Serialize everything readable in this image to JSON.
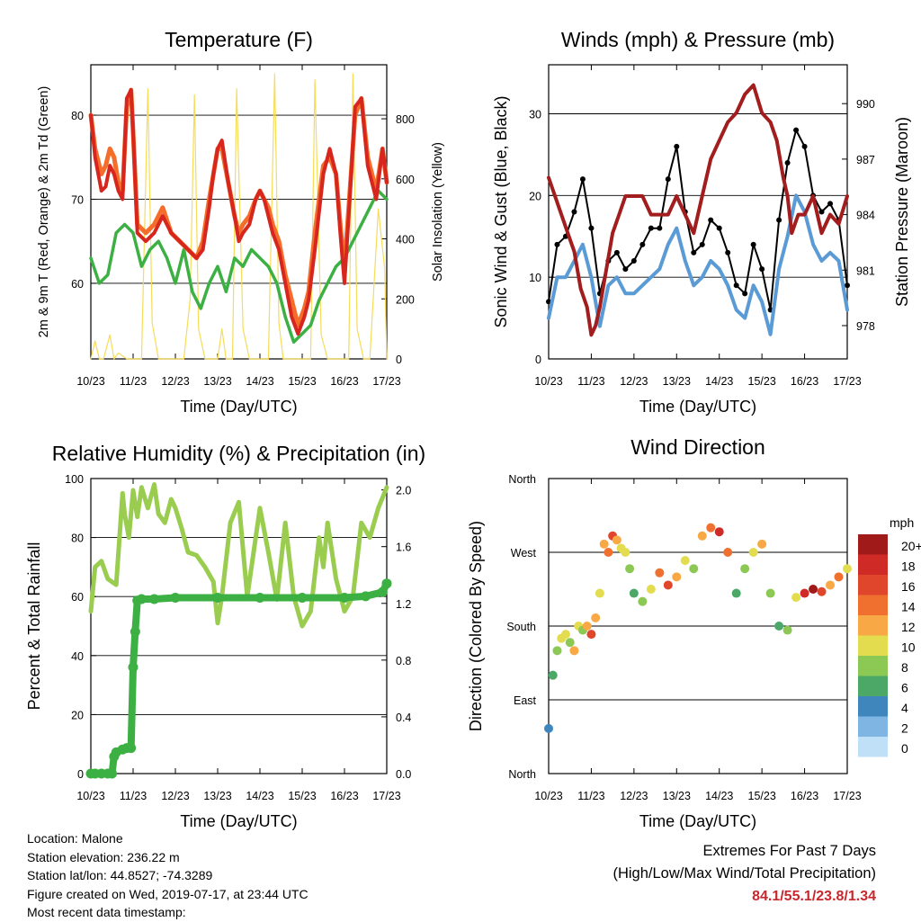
{
  "x_ticks": [
    "10/23",
    "11/23",
    "12/23",
    "13/23",
    "14/23",
    "15/23",
    "16/23",
    "17/23"
  ],
  "xlabel": "Time (Day/UTC)",
  "colors": {
    "temp2m": "#d7261e",
    "temp9m": "#f46d2a",
    "dewpoint": "#3cb043",
    "solar": "#f5dc5a",
    "gust": "#000000",
    "wind": "#5b9bd5",
    "pressure": "#a21d1d",
    "rh": "#9acd4f",
    "precip": "#3cb043"
  },
  "chart_data": [
    {
      "type": "line",
      "title": "Temperature (F)",
      "xlabel": "Time (Day/UTC)",
      "ylabel": "2m & 9m T (Red, Orange) & 2m Td (Green)",
      "y2label": "Solar Insolation (Yellow)",
      "x_ticks": [
        "10/23",
        "11/23",
        "12/23",
        "13/23",
        "14/23",
        "15/23",
        "16/23",
        "17/23"
      ],
      "ylim": [
        51,
        86
      ],
      "yticks": [
        60,
        70,
        80
      ],
      "y2lim": [
        0,
        980
      ],
      "y2ticks": [
        0,
        200,
        400,
        600,
        800
      ],
      "series": [
        {
          "name": "2m T",
          "axis": "left",
          "x": [
            0,
            0.1,
            0.25,
            0.35,
            0.45,
            0.55,
            0.65,
            0.75,
            0.85,
            0.95,
            1.0,
            1.1,
            1.3,
            1.5,
            1.7,
            1.9,
            2.1,
            2.3,
            2.5,
            2.65,
            2.8,
            2.9,
            3.0,
            3.1,
            3.25,
            3.4,
            3.5,
            3.6,
            3.75,
            3.9,
            4.0,
            4.1,
            4.2,
            4.3,
            4.45,
            4.6,
            4.75,
            4.9,
            5.05,
            5.15,
            5.3,
            5.5,
            5.65,
            5.8,
            5.9,
            6.0,
            6.1,
            6.25,
            6.4,
            6.55,
            6.75,
            6.9,
            7.0
          ],
          "y": [
            80,
            75,
            71,
            71.5,
            74,
            73,
            71,
            70,
            82,
            83,
            78,
            66,
            65,
            66,
            68,
            66,
            65,
            64,
            63,
            64,
            69,
            73,
            76,
            77,
            72,
            68,
            65,
            66,
            67,
            70,
            71,
            70,
            68,
            66,
            64,
            60,
            56,
            54,
            56,
            58,
            64,
            73,
            76,
            73,
            66,
            60,
            68,
            81,
            82,
            74,
            70,
            76,
            72
          ]
        },
        {
          "name": "9m T",
          "axis": "left",
          "x": [
            0,
            0.1,
            0.25,
            0.35,
            0.45,
            0.55,
            0.65,
            0.75,
            0.85,
            0.95,
            1.0,
            1.1,
            1.3,
            1.5,
            1.7,
            1.9,
            2.1,
            2.3,
            2.5,
            2.65,
            2.8,
            2.9,
            3.0,
            3.1,
            3.25,
            3.4,
            3.5,
            3.6,
            3.75,
            3.9,
            4.0,
            4.1,
            4.2,
            4.3,
            4.45,
            4.6,
            4.75,
            4.9,
            5.05,
            5.15,
            5.3,
            5.5,
            5.65,
            5.8,
            5.9,
            6.0,
            6.1,
            6.25,
            6.4,
            6.55,
            6.75,
            6.9,
            7.0
          ],
          "y": [
            80,
            76,
            73,
            74,
            76,
            75,
            72,
            71,
            81,
            83,
            78,
            67,
            66,
            67,
            69,
            66,
            65,
            64,
            63,
            65,
            70,
            73,
            76,
            76,
            72,
            68,
            66,
            67,
            68,
            70,
            71,
            70,
            69,
            67,
            65,
            61,
            58,
            55,
            57,
            59,
            66,
            74,
            75,
            73,
            67,
            62,
            69,
            80,
            82,
            75,
            71,
            76,
            72
          ]
        },
        {
          "name": "2m Td",
          "axis": "left",
          "x": [
            0,
            0.2,
            0.4,
            0.6,
            0.8,
            1.0,
            1.2,
            1.4,
            1.6,
            1.8,
            2.0,
            2.2,
            2.4,
            2.6,
            2.8,
            3.0,
            3.2,
            3.4,
            3.6,
            3.8,
            4.0,
            4.2,
            4.4,
            4.6,
            4.8,
            5.0,
            5.2,
            5.4,
            5.6,
            5.8,
            6.0,
            6.2,
            6.4,
            6.6,
            6.8,
            7.0
          ],
          "y": [
            63,
            60,
            61,
            66,
            67,
            66,
            62,
            64,
            65,
            63,
            60,
            64,
            59,
            57,
            60,
            62,
            59,
            63,
            62,
            64,
            63,
            62,
            60,
            56,
            53,
            54,
            55,
            58,
            60,
            62,
            63,
            65,
            67,
            69,
            71,
            70
          ]
        },
        {
          "name": "Solar Insolation",
          "axis": "right",
          "x": [
            0,
            0.1,
            0.2,
            0.3,
            0.45,
            0.55,
            0.65,
            0.85,
            1.0,
            1.2,
            1.35,
            1.45,
            1.6,
            1.75,
            2.0,
            2.2,
            2.35,
            2.45,
            2.55,
            2.7,
            2.85,
            3.0,
            3.1,
            3.2,
            3.35,
            3.45,
            3.6,
            3.75,
            3.9,
            4.05,
            4.2,
            4.35,
            4.45,
            4.55,
            4.7,
            4.85,
            5.0,
            5.2,
            5.3,
            5.45,
            5.6,
            5.8,
            5.9,
            6.0,
            6.1,
            6.2,
            6.3,
            6.45,
            6.6,
            6.8,
            6.95,
            7.0
          ],
          "y": [
            0,
            60,
            0,
            0,
            80,
            0,
            20,
            0,
            0,
            0,
            900,
            120,
            0,
            0,
            0,
            0,
            200,
            880,
            100,
            0,
            0,
            0,
            100,
            0,
            0,
            900,
            100,
            0,
            0,
            0,
            0,
            950,
            120,
            0,
            0,
            0,
            0,
            0,
            930,
            80,
            0,
            0,
            0,
            0,
            0,
            950,
            100,
            0,
            0,
            500,
            300,
            0
          ]
        }
      ]
    },
    {
      "type": "line",
      "title": "Winds (mph) & Pressure (mb)",
      "xlabel": "Time (Day/UTC)",
      "ylabel": "Sonic Wind & Gust (Blue, Black)",
      "y2label": "Station Pressure (Maroon)",
      "x_ticks": [
        "10/23",
        "11/23",
        "12/23",
        "13/23",
        "14/23",
        "15/23",
        "16/23",
        "17/23"
      ],
      "ylim": [
        0,
        36
      ],
      "yticks": [
        0,
        10,
        20,
        30
      ],
      "y2lim": [
        976.2,
        992.1
      ],
      "y2ticks": [
        978,
        981,
        984,
        987,
        990
      ],
      "series": [
        {
          "name": "Gust",
          "axis": "left",
          "x": [
            0,
            0.2,
            0.4,
            0.6,
            0.8,
            1.0,
            1.2,
            1.4,
            1.6,
            1.8,
            2.0,
            2.2,
            2.4,
            2.6,
            2.8,
            3.0,
            3.2,
            3.4,
            3.6,
            3.8,
            4.0,
            4.2,
            4.4,
            4.6,
            4.8,
            5.0,
            5.2,
            5.4,
            5.6,
            5.8,
            6.0,
            6.2,
            6.4,
            6.6,
            6.8,
            7.0
          ],
          "y": [
            7,
            14,
            15,
            18,
            22,
            16,
            8,
            12,
            13,
            11,
            12,
            14,
            16,
            16,
            22,
            26,
            18,
            13,
            14,
            17,
            16,
            13,
            9,
            8,
            14,
            11,
            6,
            17,
            24,
            28,
            26,
            20,
            18,
            19,
            17,
            9
          ]
        },
        {
          "name": "Wind",
          "axis": "left",
          "x": [
            0,
            0.2,
            0.4,
            0.6,
            0.8,
            1.0,
            1.2,
            1.4,
            1.6,
            1.8,
            2.0,
            2.2,
            2.4,
            2.6,
            2.8,
            3.0,
            3.2,
            3.4,
            3.6,
            3.8,
            4.0,
            4.2,
            4.4,
            4.6,
            4.8,
            5.0,
            5.2,
            5.4,
            5.6,
            5.8,
            6.0,
            6.2,
            6.4,
            6.6,
            6.8,
            7.0
          ],
          "y": [
            5,
            10,
            10,
            12,
            14,
            10,
            4,
            9,
            10,
            8,
            8,
            9,
            10,
            11,
            14,
            16,
            12,
            9,
            10,
            12,
            11,
            9,
            6,
            5,
            9,
            7,
            3,
            11,
            15,
            20,
            18,
            14,
            12,
            13,
            12,
            6
          ]
        },
        {
          "name": "Station Pressure",
          "axis": "right",
          "x": [
            0,
            0.15,
            0.3,
            0.45,
            0.6,
            0.75,
            0.9,
            1.0,
            1.1,
            1.2,
            1.35,
            1.5,
            1.65,
            1.8,
            2.0,
            2.2,
            2.4,
            2.6,
            2.8,
            3.0,
            3.2,
            3.4,
            3.6,
            3.8,
            4.0,
            4.2,
            4.4,
            4.6,
            4.8,
            5.0,
            5.2,
            5.35,
            5.5,
            5.6,
            5.7,
            5.85,
            6.0,
            6.2,
            6.4,
            6.6,
            6.8,
            7.0
          ],
          "y": [
            986,
            985,
            984,
            983,
            982,
            980,
            979,
            977.5,
            978,
            979,
            981,
            983,
            984,
            985,
            985,
            985,
            984,
            984,
            984,
            985,
            984,
            983,
            985,
            987,
            988,
            989,
            989.5,
            990.5,
            991,
            989.5,
            989,
            988,
            986,
            985,
            983,
            984,
            984,
            985,
            983,
            984,
            983.5,
            985
          ]
        }
      ]
    },
    {
      "type": "line",
      "title": "Relative Humidity (%) & Precipitation (in)",
      "xlabel": "Time (Day/UTC)",
      "ylabel": "Percent & Total Rainfall",
      "x_ticks": [
        "10/23",
        "11/23",
        "12/23",
        "13/23",
        "14/23",
        "15/23",
        "16/23",
        "17/23"
      ],
      "ylim": [
        0,
        100
      ],
      "yticks": [
        0,
        20,
        40,
        60,
        80,
        100
      ],
      "y2lim": [
        0,
        2.08
      ],
      "y2ticks": [
        "0.0",
        "0.4",
        "0.8",
        "1.2",
        "1.6",
        "2.0"
      ],
      "series": [
        {
          "name": "Relative Humidity",
          "axis": "left",
          "x": [
            0,
            0.1,
            0.25,
            0.4,
            0.5,
            0.6,
            0.75,
            0.8,
            0.9,
            1.0,
            1.1,
            1.2,
            1.35,
            1.5,
            1.6,
            1.75,
            1.9,
            2.0,
            2.15,
            2.3,
            2.5,
            2.7,
            2.9,
            3.0,
            3.1,
            3.3,
            3.5,
            3.7,
            3.9,
            4.0,
            4.2,
            4.4,
            4.6,
            4.8,
            5.0,
            5.2,
            5.4,
            5.5,
            5.6,
            5.8,
            6.0,
            6.2,
            6.4,
            6.6,
            6.8,
            7.0
          ],
          "y": [
            55,
            70,
            72,
            66,
            65,
            64,
            95,
            88,
            80,
            96,
            87,
            97,
            90,
            98,
            88,
            85,
            93,
            90,
            83,
            75,
            74,
            70,
            65,
            51,
            60,
            85,
            92,
            60,
            80,
            90,
            75,
            59,
            85,
            60,
            50,
            55,
            80,
            70,
            85,
            66,
            55,
            60,
            85,
            80,
            90,
            97
          ]
        },
        {
          "name": "Total Precipitation",
          "axis": "right",
          "x": [
            0,
            0.1,
            0.25,
            0.4,
            0.5,
            0.55,
            0.6,
            0.75,
            0.85,
            0.95,
            1.0,
            1.05,
            1.1,
            1.2,
            1.5,
            2.0,
            3.0,
            4.0,
            5.0,
            6.0,
            6.5,
            6.9,
            7.0
          ],
          "y": [
            0,
            0,
            0,
            0,
            0,
            0.12,
            0.15,
            0.17,
            0.18,
            0.18,
            0.75,
            1.0,
            1.22,
            1.23,
            1.23,
            1.24,
            1.24,
            1.24,
            1.24,
            1.24,
            1.25,
            1.28,
            1.34
          ]
        }
      ]
    },
    {
      "type": "scatter",
      "title": "Wind Direction",
      "xlabel": "Time (Day/UTC)",
      "ylabel": "Direction (Colored By Speed)",
      "x_ticks": [
        "10/23",
        "11/23",
        "12/23",
        "13/23",
        "14/23",
        "15/23",
        "16/23",
        "17/23"
      ],
      "yticks": [
        "North",
        "East",
        "South",
        "West",
        "North"
      ],
      "ylim": [
        0,
        360
      ],
      "colorbar": {
        "unit": "mph",
        "labels": [
          "20+",
          "18",
          "16",
          "14",
          "12",
          "10",
          "8",
          "6",
          "4",
          "2",
          "0"
        ],
        "colors": [
          "#a01a1a",
          "#cf2a26",
          "#e0462b",
          "#f0702f",
          "#f8a845",
          "#e3dc4f",
          "#8cc854",
          "#4ca867",
          "#3f86bd",
          "#7fb5e2",
          "#bfe0f7"
        ]
      },
      "x": [
        0,
        0.1,
        0.2,
        0.3,
        0.4,
        0.5,
        0.6,
        0.7,
        0.8,
        0.9,
        1.0,
        1.1,
        1.2,
        1.3,
        1.4,
        1.5,
        1.6,
        1.7,
        1.8,
        1.9,
        2.0,
        2.2,
        2.4,
        2.6,
        2.8,
        3.0,
        3.2,
        3.4,
        3.6,
        3.8,
        4.0,
        4.2,
        4.4,
        4.6,
        4.8,
        5.0,
        5.2,
        5.4,
        5.6,
        5.8,
        6.0,
        6.2,
        6.4,
        6.6,
        6.8,
        7.0
      ],
      "y": [
        55,
        120,
        150,
        165,
        170,
        160,
        150,
        180,
        175,
        180,
        170,
        190,
        220,
        280,
        270,
        290,
        285,
        275,
        270,
        250,
        220,
        210,
        225,
        245,
        230,
        240,
        260,
        250,
        290,
        300,
        295,
        270,
        220,
        250,
        270,
        280,
        220,
        180,
        175,
        215,
        220,
        225,
        222,
        230,
        240,
        250
      ],
      "speed": [
        4,
        6,
        8,
        10,
        10,
        8,
        12,
        10,
        8,
        12,
        16,
        12,
        10,
        12,
        14,
        16,
        12,
        10,
        10,
        8,
        6,
        8,
        10,
        14,
        16,
        12,
        10,
        8,
        12,
        14,
        18,
        14,
        6,
        8,
        10,
        12,
        8,
        6,
        8,
        10,
        18,
        20,
        16,
        12,
        14,
        10
      ]
    }
  ],
  "location": "Location: Malone",
  "elevation": "Station elevation: 236.22 m",
  "latlon": "Station lat/lon: 44.8527; -74.3289",
  "created": "Figure created on Wed, 2019-07-17, at 23:44 UTC",
  "recent": "Most recent data timestamp:",
  "extremes_title": "Extremes For Past 7 Days",
  "extremes_sub": "(High/Low/Max Wind/Total Precipitation)",
  "extremes_values": "84.1/55.1/23.8/1.34"
}
